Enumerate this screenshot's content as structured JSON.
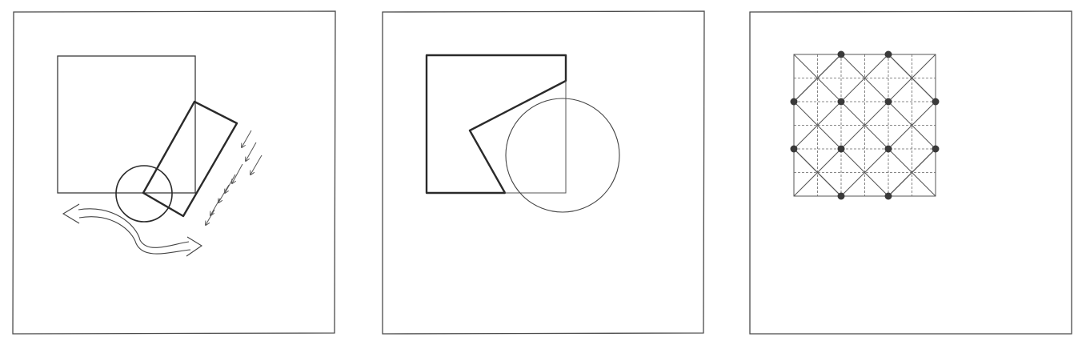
{
  "background": "#ffffff",
  "ink": "#3a3a3a",
  "panels": [
    {
      "name": "rotation-diagram",
      "content": [
        "square",
        "rotated-rectangle",
        "circle",
        "curved-arrow",
        "parallel-arrows"
      ]
    },
    {
      "name": "merged-form-diagram",
      "content": [
        "cut-square",
        "circle"
      ]
    },
    {
      "name": "grid-diagram",
      "content": [
        "square-grid",
        "diagonal-lattice",
        "dots"
      ]
    }
  ],
  "grid": {
    "divisions": 6,
    "dot_rows": 4,
    "dots_per_row": [
      2,
      4,
      4,
      2
    ]
  }
}
